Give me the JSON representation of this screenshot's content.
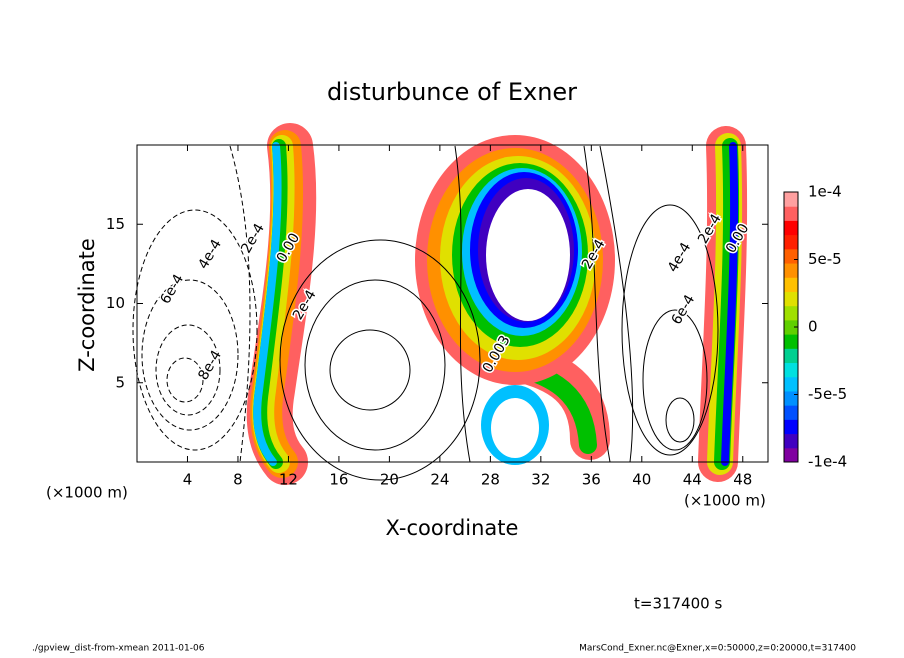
{
  "chart_data": {
    "type": "contour",
    "title": "disturbunce of Exner",
    "xlabel": "X-coordinate",
    "ylabel": "Z-coordinate",
    "xunit": "(×1000 m)",
    "yunit": "(×1000 m)",
    "xlim": [
      0,
      50
    ],
    "ylim": [
      0,
      20
    ],
    "xticks": [
      4,
      8,
      12,
      16,
      20,
      24,
      28,
      32,
      36,
      40,
      44,
      48
    ],
    "yticks": [
      5,
      10,
      15
    ],
    "colorbar_lim": [
      -0.0001,
      0.0001
    ],
    "colorbar_ticks": [
      {
        "value": 0.0001,
        "label": "1e-4"
      },
      {
        "value": 5e-05,
        "label": "5e-5"
      },
      0,
      {
        "value": -5e-05,
        "label": "-5e-5"
      },
      {
        "value": -0.0001,
        "label": "-1e-4"
      }
    ],
    "colormap": [
      "#8000a0",
      "#4000c0",
      "#0000ff",
      "#0050ff",
      "#0090ff",
      "#00c0ff",
      "#00e0e0",
      "#00d090",
      "#00c000",
      "#60d000",
      "#a0e000",
      "#e0e000",
      "#ffc000",
      "#ff9000",
      "#ff6000",
      "#ff2000",
      "#ff0000",
      "#ff6060",
      "#ffa0a0"
    ],
    "annotations": [
      {
        "text": "2e-4",
        "x": 9.2,
        "y": 14.1
      },
      {
        "text": "0.00",
        "x": 12.0,
        "y": 13.5
      },
      {
        "text": "4e-4",
        "x": 5.8,
        "y": 13.1
      },
      {
        "text": "6e-4",
        "x": 2.8,
        "y": 10.9
      },
      {
        "text": "8e-4",
        "x": 5.8,
        "y": 6.1
      },
      {
        "text": "2e-4",
        "x": 13.3,
        "y": 9.9
      },
      {
        "text": "0.003",
        "x": 28.5,
        "y": 6.8
      },
      {
        "text": "2e-4",
        "x": 36.2,
        "y": 13.1
      },
      {
        "text": "4e-4",
        "x": 43.0,
        "y": 12.9
      },
      {
        "text": "6e-4",
        "x": 43.3,
        "y": 9.6
      },
      {
        "text": "2e-4",
        "x": 45.4,
        "y": 14.7
      },
      {
        "text": "0.00",
        "x": 47.6,
        "y": 14.1
      }
    ],
    "time_label": "t=317400 s",
    "footer_left": "./gpview_dist-from-xmean  2011-01-06",
    "footer_right": "MarsCond_Exner.nc@Exner,x=0:50000,z=0:20000,t=317400"
  }
}
